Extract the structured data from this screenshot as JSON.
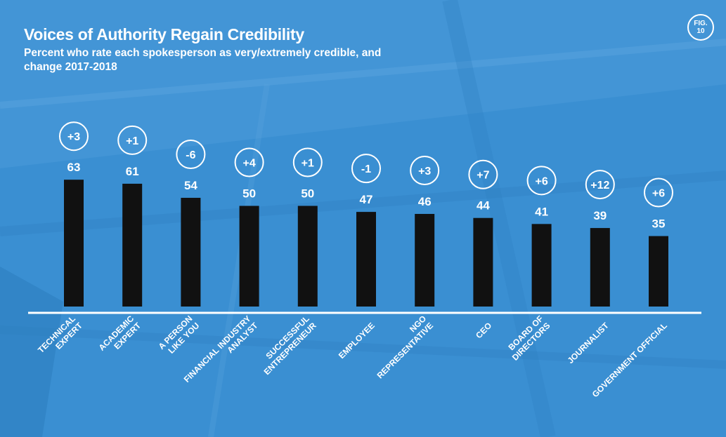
{
  "figure": {
    "badge_line1": "FIG.",
    "badge_line2": "10"
  },
  "chart_data": {
    "type": "bar",
    "title": "Voices of Authority Regain Credibility",
    "subtitle": "Percent who rate each spokesperson as very/extremely credible, and change 2017-2018",
    "categories": [
      [
        "TECHNICAL",
        "EXPERT"
      ],
      [
        "ACADEMIC",
        "EXPERT"
      ],
      [
        "A PERSON",
        "LIKE YOU"
      ],
      [
        "FINANCIAL INDUSTRY",
        "ANALYST"
      ],
      [
        "SUCCESSFUL",
        "ENTREPRENEUR"
      ],
      [
        "EMPLOYEE"
      ],
      [
        "NGO",
        "REPRESENTATIVE"
      ],
      [
        "CEO"
      ],
      [
        "BOARD OF",
        "DIRECTORS"
      ],
      [
        "JOURNALIST"
      ],
      [
        "GOVERNMENT OFFICIAL"
      ]
    ],
    "values": [
      63,
      61,
      54,
      50,
      50,
      47,
      46,
      44,
      41,
      39,
      35
    ],
    "changes": [
      "+3",
      "+1",
      "-6",
      "+4",
      "+1",
      "-1",
      "+3",
      "+7",
      "+6",
      "+12",
      "+6"
    ],
    "ylim": [
      0,
      100
    ],
    "grid": false,
    "colors": {
      "background": "#3a8fd2",
      "bar": "#111111",
      "text": "#ffffff",
      "baseline": "#ffffff"
    }
  }
}
